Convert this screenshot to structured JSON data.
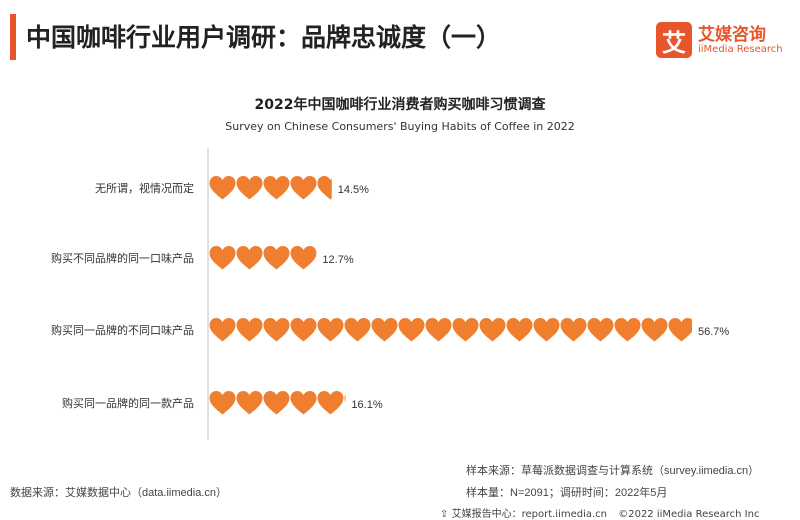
{
  "header": {
    "title": "中国咖啡行业用户调研：品牌忠诚度（一）"
  },
  "logo": {
    "mark": "艾",
    "name_cn": "艾媒咨询",
    "name_en": "iiMedia Research"
  },
  "colors": {
    "accent": "#e8552a",
    "heart": "#ef7f2f",
    "axis": "#bfbfbf"
  },
  "chart_data": {
    "type": "bar",
    "title": "2022年中国咖啡行业消费者购买咖啡习惯调查",
    "subtitle": "Survey on Chinese Consumers' Buying Habits of Coffee in 2022",
    "categories": [
      "无所谓，视情况而定",
      "购买不同品牌的同一口味产品",
      "购买同一品牌的不同口味产品",
      "购买同一品牌的同一款产品"
    ],
    "values": [
      14.5,
      12.7,
      56.7,
      16.1
    ],
    "value_labels": [
      "14.5%",
      "12.7%",
      "56.7%",
      "16.1%"
    ],
    "unit": "%",
    "xlim": [
      0,
      60
    ],
    "grid": false,
    "mark": "heart-pictogram"
  },
  "footer": {
    "source": "数据来源：艾媒数据中心（data.iimedia.cn）",
    "sample_source": "样本来源：草莓派数据调查与计算系统（survey.iimedia.cn）",
    "sample_size": "样本量：N=2091；调研时间：2022年5月",
    "report_center": "艾媒报告中心：report.iimedia.cn",
    "copyright": "©2022  iiMedia Research  Inc"
  }
}
